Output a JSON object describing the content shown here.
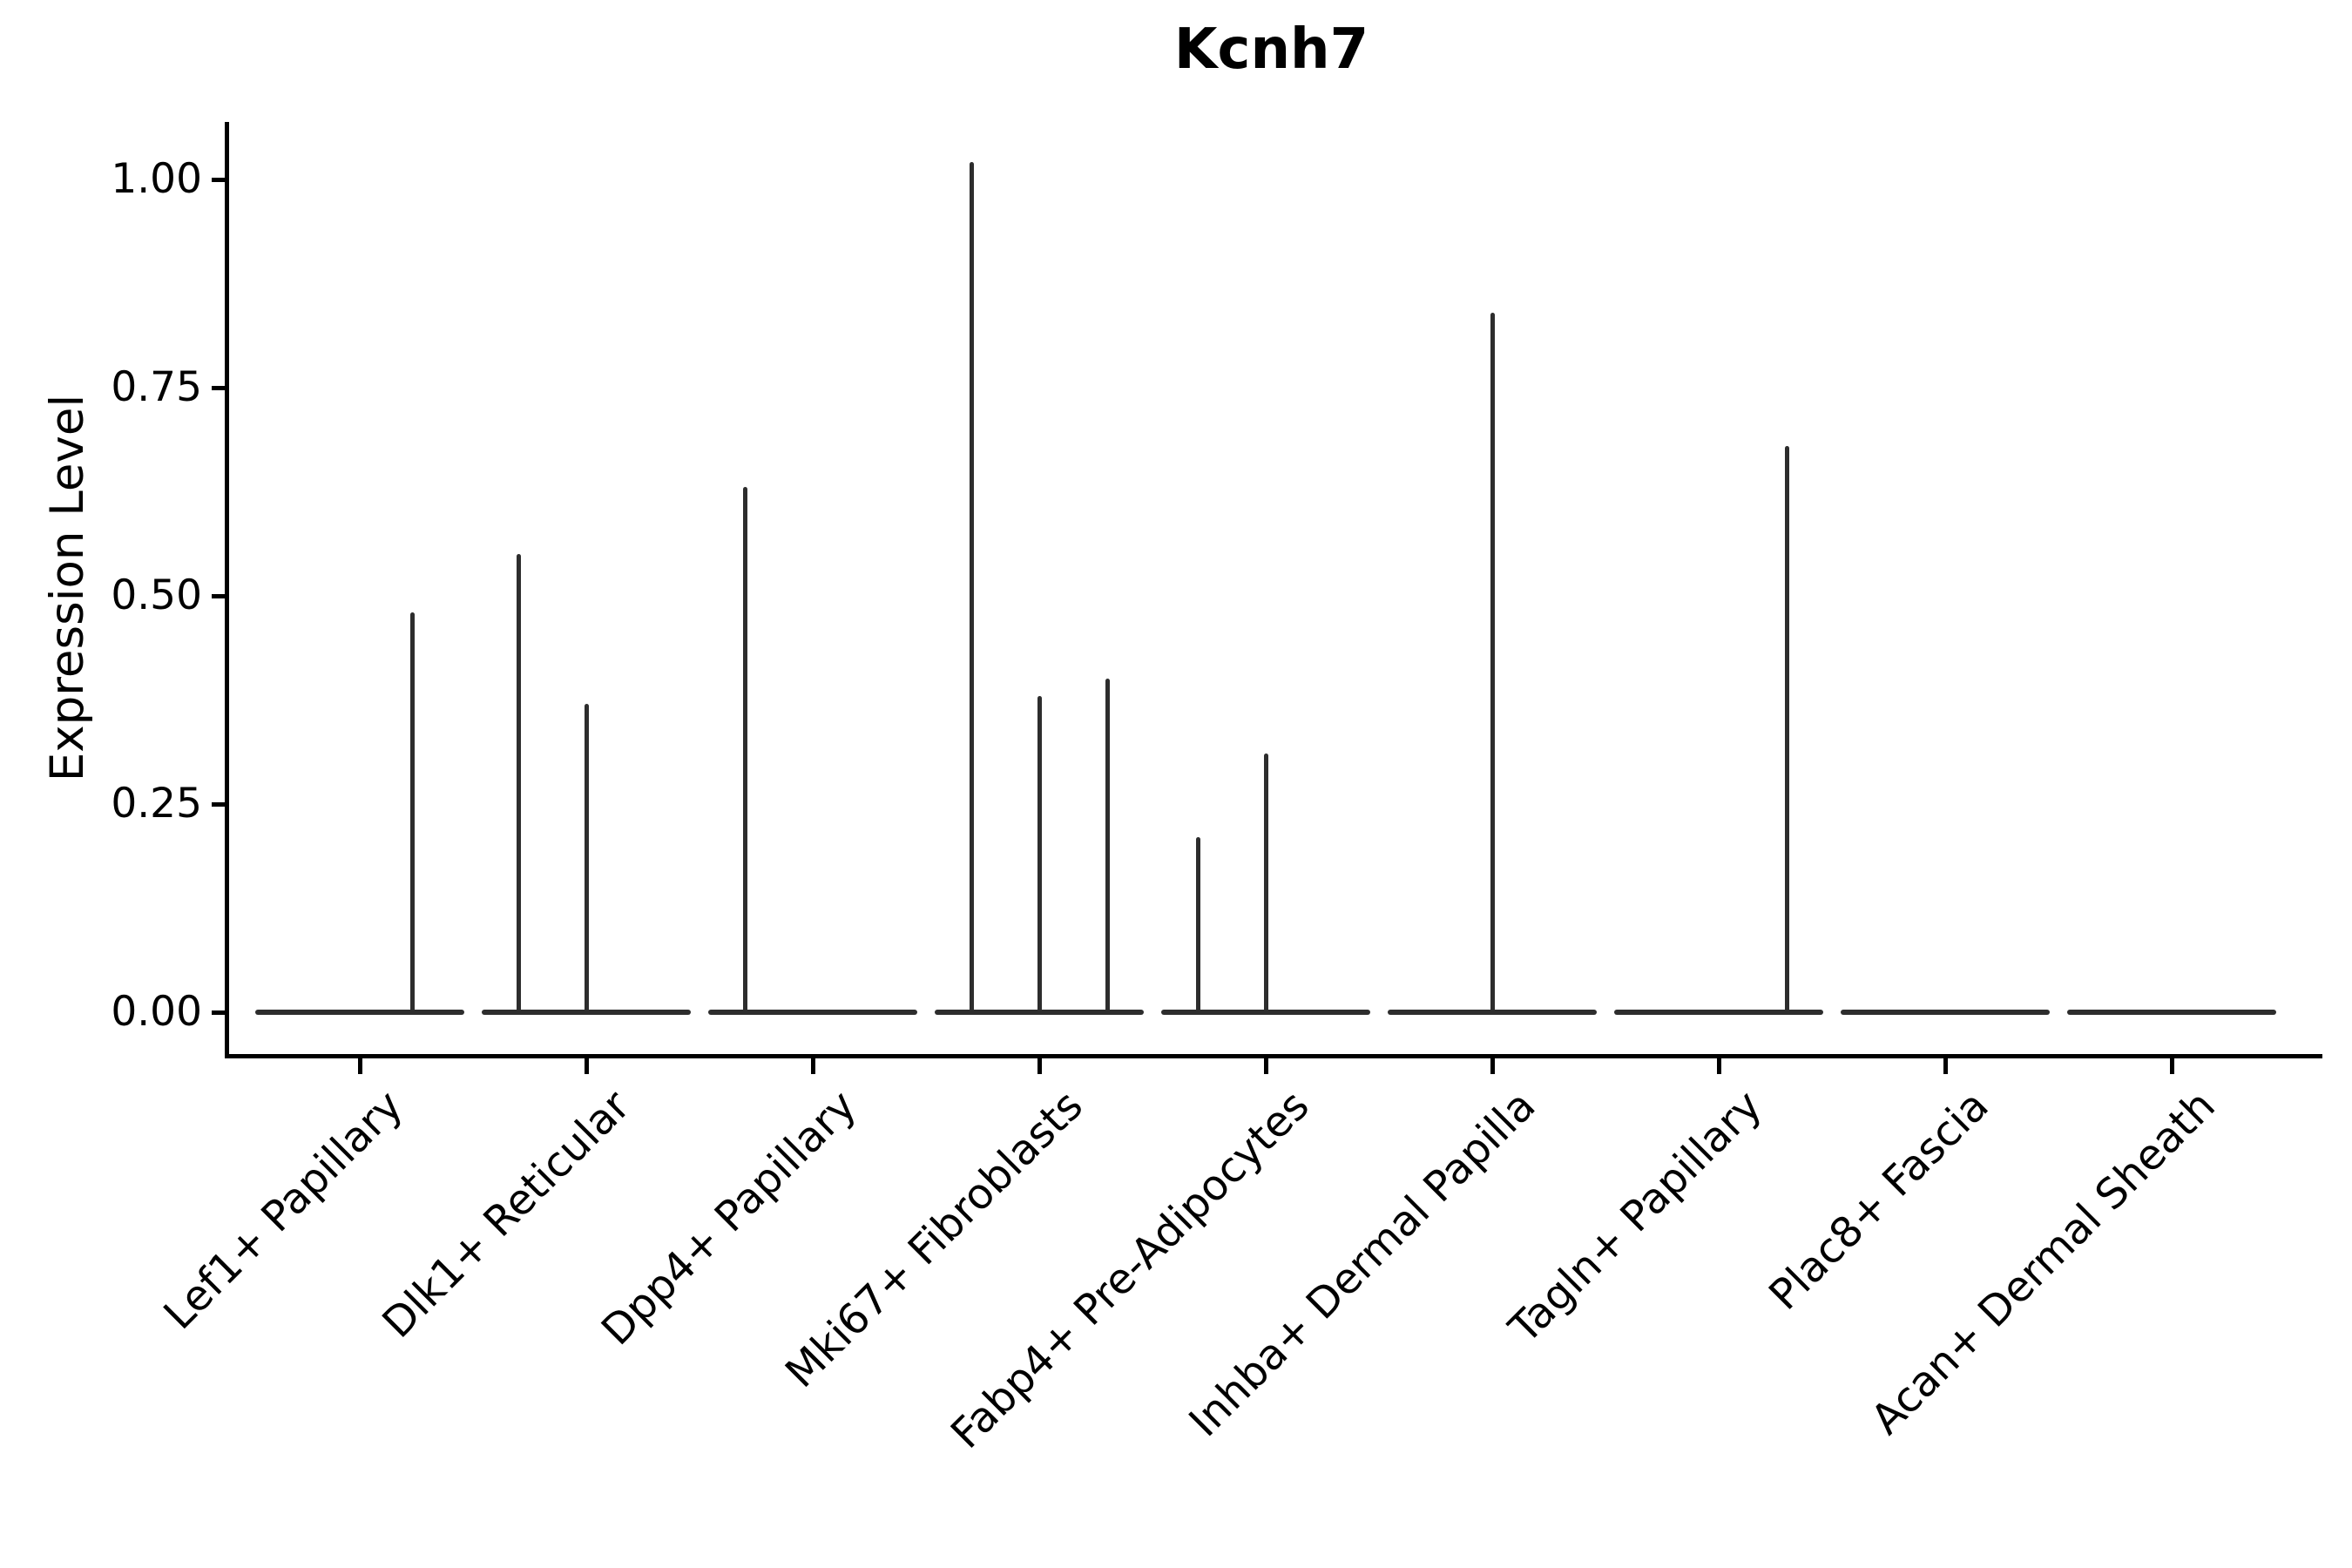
{
  "figure": {
    "background": "#ffffff"
  },
  "chart_data": {
    "type": "violin",
    "title": "Kcnh7",
    "ylabel": "Expression Level",
    "xlabel": "",
    "ylim": [
      0,
      1.07
    ],
    "yticks": [
      {
        "label": "1.00",
        "value": 1.0
      },
      {
        "label": "0.75",
        "value": 0.75
      },
      {
        "label": "0.50",
        "value": 0.5
      },
      {
        "label": "0.25",
        "value": 0.25
      },
      {
        "label": "0.00",
        "value": 0.0
      }
    ],
    "grid": false,
    "legend": "none",
    "violin_color": "#2d2d2d",
    "axis_color": "#000000",
    "categories": [
      "Lef1+ Papillary",
      "Dlk1+ Reticular",
      "Dpp4+ Papillary",
      "Mki67+ Fibroblasts",
      "Fabp4+ Pre-Adipocytes",
      "Inhba+ Dermal Papilla",
      "Tagln+ Papillary",
      "Plac8+ Fascia",
      "Acan+ Dermal Sheath"
    ],
    "violins": [
      {
        "category": "Lef1+ Papillary",
        "baseline_value": 0,
        "spikes": [
          {
            "offset": 0.232,
            "max": 0.48
          }
        ]
      },
      {
        "category": "Dlk1+ Reticular",
        "baseline_value": 0,
        "spikes": [
          {
            "offset": -0.3,
            "max": 0.55
          },
          {
            "offset": 0.0,
            "max": 0.37
          }
        ]
      },
      {
        "category": "Dpp4+ Papillary",
        "baseline_value": 0,
        "spikes": [
          {
            "offset": -0.3,
            "max": 0.63
          }
        ]
      },
      {
        "category": "Mki67+ Fibroblasts",
        "baseline_value": 0,
        "spikes": [
          {
            "offset": -0.3,
            "max": 1.02
          },
          {
            "offset": 0.0,
            "max": 0.38
          },
          {
            "offset": 0.3,
            "max": 0.4
          }
        ]
      },
      {
        "category": "Fabp4+ Pre-Adipocytes",
        "baseline_value": 0,
        "spikes": [
          {
            "offset": -0.3,
            "max": 0.21
          },
          {
            "offset": 0.0,
            "max": 0.31
          }
        ]
      },
      {
        "category": "Inhba+ Dermal Papilla",
        "baseline_value": 0,
        "spikes": [
          {
            "offset": 0.0,
            "max": 0.84
          }
        ]
      },
      {
        "category": "Tagln+ Papillary",
        "baseline_value": 0,
        "spikes": [
          {
            "offset": 0.3,
            "max": 0.68
          }
        ]
      },
      {
        "category": "Plac8+ Fascia",
        "baseline_value": 0,
        "spikes": []
      },
      {
        "category": "Acan+ Dermal Sheath",
        "baseline_value": 0,
        "spikes": []
      }
    ]
  }
}
